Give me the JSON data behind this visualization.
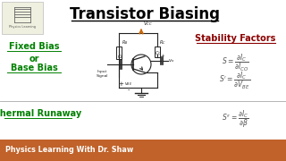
{
  "title": "Transistor Biasing",
  "left_top_text1": "Fixed Bias",
  "left_top_text2": "or",
  "left_top_text3": "Base Bias",
  "left_bottom_text": "Thermal Runaway",
  "right_top_text": "Stability Factors",
  "formula1": "$S = \\dfrac{\\partial I_C}{\\partial I_{CO}}$",
  "formula2": "$S^{\\prime} = \\dfrac{\\partial I_C}{\\partial V_{BE}}$",
  "formula3": "$S^{\\prime\\prime} = \\dfrac{\\partial I_C}{\\partial \\beta}$",
  "footer_text": "Physics Learning With Dr. Shaw",
  "bg_color": "#ffffff",
  "title_color": "#000000",
  "left_text_color": "#008000",
  "right_title_color": "#8B0000",
  "formula_color": "#555555",
  "footer_bg": "#c0622a",
  "footer_text_color": "#ffffff",
  "divider_color": "#aaaaaa",
  "logo_box_color": "#f0f0e0",
  "vcc_arrow_color": "#cc6600",
  "circuit_color": "#222222"
}
